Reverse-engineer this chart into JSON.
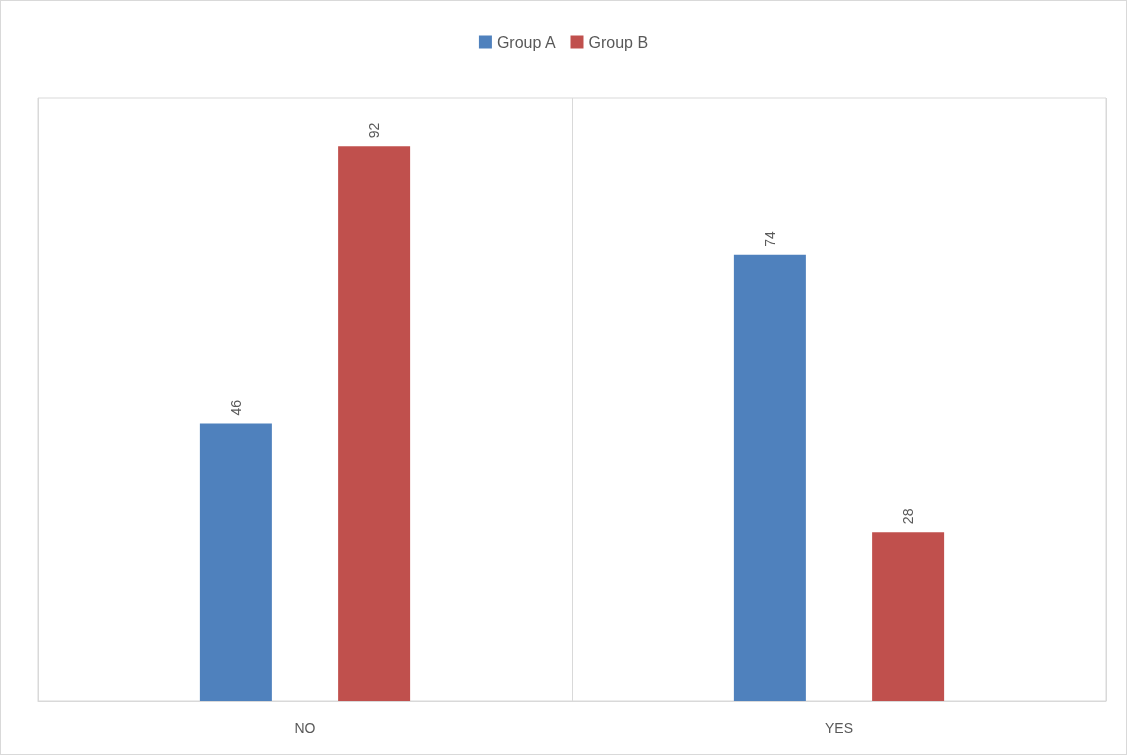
{
  "chart_data": {
    "type": "bar",
    "categories": [
      "NO",
      "YES"
    ],
    "series": [
      {
        "name": "Group A",
        "color": "#4f81bd",
        "values": [
          46,
          74
        ]
      },
      {
        "name": "Group B",
        "color": "#c0504d",
        "values": [
          92,
          28
        ]
      }
    ],
    "ylim": [
      0,
      100
    ],
    "tick_labels": "x",
    "data_labels": true,
    "grid": "x",
    "legend": "top"
  }
}
